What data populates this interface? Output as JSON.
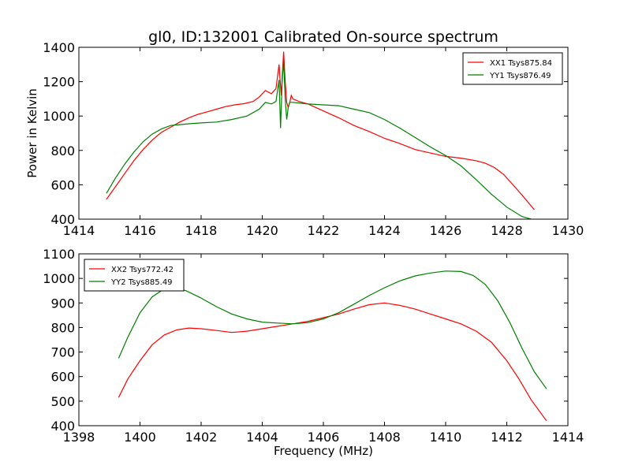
{
  "figure": {
    "background": "#ffffff"
  },
  "chart_data": [
    {
      "type": "line",
      "title": "gl0, ID:132001 Calibrated On-source spectrum",
      "xlabel": "",
      "ylabel": "Power in Kelvin",
      "xlim": [
        1414,
        1430
      ],
      "ylim": [
        400,
        1400
      ],
      "xticks": [
        1414,
        1416,
        1418,
        1420,
        1422,
        1424,
        1426,
        1428,
        1430
      ],
      "yticks": [
        400,
        600,
        800,
        1000,
        1200,
        1400
      ],
      "grid": false,
      "legend_position": "top-right",
      "series": [
        {
          "name": "XX1 Tsys875.84",
          "color": "#ff0000",
          "x": [
            1414.9,
            1415.2,
            1415.5,
            1415.8,
            1416.1,
            1416.4,
            1416.7,
            1417.0,
            1417.3,
            1417.6,
            1417.9,
            1418.2,
            1418.5,
            1418.8,
            1419.1,
            1419.4,
            1419.7,
            1419.9,
            1420.1,
            1420.3,
            1420.45,
            1420.55,
            1420.62,
            1420.7,
            1420.75,
            1420.8,
            1420.85,
            1420.9,
            1420.95,
            1421.0,
            1421.2,
            1421.5,
            1422.0,
            1422.5,
            1423.0,
            1423.5,
            1424.0,
            1424.5,
            1425.0,
            1425.5,
            1426.0,
            1426.5,
            1427.0,
            1427.3,
            1427.6,
            1427.9,
            1428.2,
            1428.5,
            1428.9
          ],
          "y": [
            515,
            590,
            665,
            740,
            805,
            860,
            905,
            935,
            965,
            990,
            1010,
            1025,
            1040,
            1055,
            1065,
            1072,
            1085,
            1110,
            1148,
            1130,
            1160,
            1300,
            1120,
            1375,
            1200,
            1080,
            1050,
            1080,
            1120,
            1100,
            1085,
            1070,
            1030,
            990,
            945,
            910,
            870,
            840,
            805,
            785,
            765,
            755,
            740,
            725,
            700,
            660,
            600,
            540,
            455
          ]
        },
        {
          "name": "YY1 Tsys876.49",
          "color": "#008000",
          "x": [
            1414.9,
            1415.2,
            1415.5,
            1415.8,
            1416.1,
            1416.4,
            1416.7,
            1417.0,
            1417.3,
            1417.6,
            1418.0,
            1418.5,
            1419.0,
            1419.5,
            1419.9,
            1420.1,
            1420.3,
            1420.45,
            1420.55,
            1420.6,
            1420.65,
            1420.7,
            1420.75,
            1420.8,
            1420.85,
            1420.9,
            1421.0,
            1421.5,
            1422.0,
            1422.5,
            1423.0,
            1423.5,
            1424.0,
            1424.5,
            1425.0,
            1425.5,
            1426.0,
            1426.5,
            1427.0,
            1427.5,
            1428.0,
            1428.5,
            1428.9
          ],
          "y": [
            550,
            640,
            720,
            790,
            850,
            895,
            925,
            945,
            950,
            955,
            960,
            965,
            980,
            1000,
            1040,
            1080,
            1070,
            1085,
            1210,
            930,
            1200,
            1320,
            1100,
            980,
            1050,
            1080,
            1080,
            1070,
            1065,
            1060,
            1040,
            1020,
            980,
            930,
            875,
            820,
            770,
            710,
            630,
            545,
            470,
            415,
            395
          ]
        }
      ]
    },
    {
      "type": "line",
      "title": "",
      "xlabel": "Frequency (MHz)",
      "ylabel": "",
      "xlim": [
        1398,
        1414
      ],
      "ylim": [
        400,
        1100
      ],
      "xticks": [
        1398,
        1400,
        1402,
        1404,
        1406,
        1408,
        1410,
        1412,
        1414
      ],
      "yticks": [
        400,
        500,
        600,
        700,
        800,
        900,
        1000,
        1100
      ],
      "grid": false,
      "legend_position": "top-left",
      "series": [
        {
          "name": "XX2 Tsys772.42",
          "color": "#ff0000",
          "x": [
            1399.3,
            1399.6,
            1400.0,
            1400.4,
            1400.8,
            1401.2,
            1401.6,
            1402.0,
            1402.5,
            1403.0,
            1403.5,
            1404.0,
            1404.5,
            1405.0,
            1405.5,
            1406.0,
            1406.5,
            1407.0,
            1407.5,
            1408.0,
            1408.5,
            1409.0,
            1409.5,
            1410.0,
            1410.5,
            1411.0,
            1411.5,
            1412.0,
            1412.4,
            1412.8,
            1413.3
          ],
          "y": [
            515,
            590,
            665,
            730,
            770,
            790,
            798,
            795,
            788,
            780,
            785,
            795,
            805,
            815,
            825,
            840,
            855,
            875,
            893,
            900,
            890,
            875,
            855,
            835,
            815,
            785,
            740,
            665,
            590,
            505,
            420
          ]
        },
        {
          "name": "YY2 Tsys885.49",
          "color": "#008000",
          "x": [
            1399.3,
            1399.6,
            1400.0,
            1400.4,
            1400.8,
            1401.1,
            1401.5,
            1402.0,
            1402.5,
            1403.0,
            1403.5,
            1404.0,
            1404.5,
            1405.0,
            1405.5,
            1406.0,
            1406.5,
            1407.0,
            1407.5,
            1408.0,
            1408.5,
            1409.0,
            1409.5,
            1410.0,
            1410.5,
            1410.9,
            1411.3,
            1411.7,
            1412.1,
            1412.5,
            1412.9,
            1413.3
          ],
          "y": [
            675,
            760,
            860,
            925,
            958,
            962,
            950,
            920,
            885,
            855,
            835,
            822,
            818,
            815,
            820,
            835,
            860,
            895,
            930,
            962,
            990,
            1010,
            1022,
            1030,
            1028,
            1012,
            975,
            910,
            820,
            715,
            620,
            550
          ]
        }
      ]
    }
  ]
}
